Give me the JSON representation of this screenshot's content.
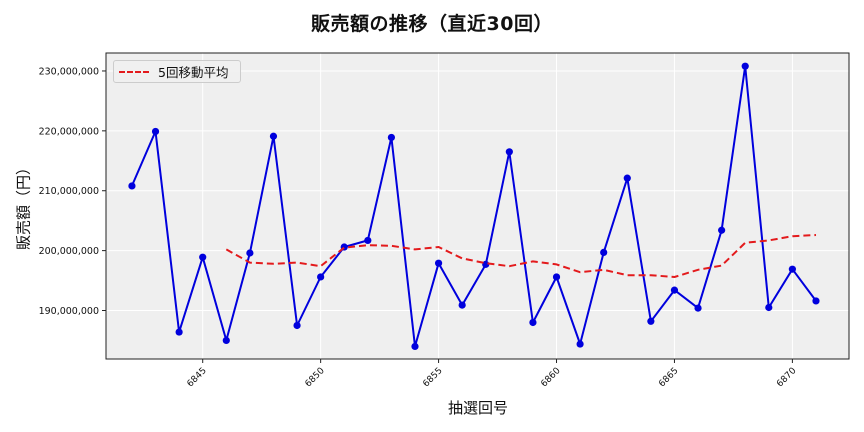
{
  "chart_data": {
    "type": "line",
    "title": "販売額の推移（直近30回）",
    "xlabel": "抽選回号",
    "ylabel": "販売額（円）",
    "x": [
      6842,
      6843,
      6844,
      6845,
      6846,
      6847,
      6848,
      6849,
      6850,
      6851,
      6852,
      6853,
      6854,
      6855,
      6856,
      6857,
      6858,
      6859,
      6860,
      6861,
      6862,
      6863,
      6864,
      6865,
      6866,
      6867,
      6868,
      6869,
      6870,
      6871
    ],
    "series": [
      {
        "name": "販売額",
        "color": "#0000dd",
        "marker": "circle",
        "linestyle": "solid",
        "values": [
          210800000,
          219900000,
          186400000,
          198900000,
          185000000,
          199600000,
          219100000,
          187500000,
          195600000,
          200600000,
          201700000,
          218900000,
          184000000,
          197900000,
          190900000,
          197700000,
          216500000,
          188000000,
          195600000,
          184400000,
          199700000,
          212100000,
          188200000,
          193400000,
          190400000,
          203400000,
          230800000,
          190500000,
          196900000,
          191600000
        ]
      },
      {
        "name": "5回移動平均",
        "color": "#e31a1c",
        "linestyle": "dashed",
        "values": [
          null,
          null,
          null,
          null,
          200200000,
          198000000,
          197800000,
          198000000,
          197400000,
          200500000,
          200900000,
          200800000,
          200200000,
          200600000,
          198700000,
          197900000,
          197400000,
          198200000,
          197700000,
          196400000,
          196800000,
          195900000,
          195900000,
          195600000,
          196800000,
          197500000,
          201300000,
          201700000,
          202400000,
          202600000
        ]
      }
    ],
    "xticks": [
      6845,
      6850,
      6855,
      6860,
      6865,
      6870
    ],
    "xtick_labels": [
      "6845",
      "6850",
      "6855",
      "6860",
      "6865",
      "6870"
    ],
    "yticks": [
      190000000,
      200000000,
      210000000,
      220000000,
      230000000
    ],
    "ytick_labels": [
      "190,000,000",
      "200,000,000",
      "210,000,000",
      "220,000,000",
      "230,000,000"
    ],
    "xlim": [
      6840.9,
      6872.4
    ],
    "ylim": [
      181900000,
      233000000
    ],
    "grid": true,
    "legend": {
      "position": "upper left",
      "entries": [
        "5回移動平均"
      ]
    },
    "background": "#efefef"
  }
}
